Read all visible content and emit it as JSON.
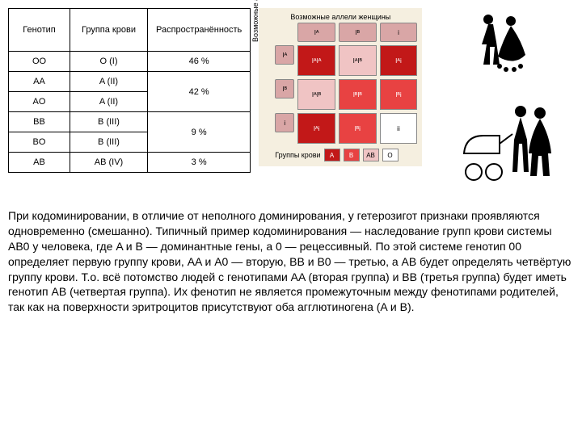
{
  "table": {
    "headers": {
      "genotype": "Генотип",
      "bloodgroup": "Группа крови",
      "percent": "Распространённость"
    },
    "rows": [
      {
        "g": "OO",
        "bg": "O (I)",
        "pc": "46 %",
        "span": 1
      },
      {
        "g": "AA",
        "bg": "A (II)",
        "pc": "42 %",
        "span": 2
      },
      {
        "g": "AO",
        "bg": "A (II)",
        "pc": "",
        "span": 0
      },
      {
        "g": "BB",
        "bg": "B (III)",
        "pc": "9 %",
        "span": 2
      },
      {
        "g": "BO",
        "bg": "B (III)",
        "pc": "",
        "span": 0
      },
      {
        "g": "AB",
        "bg": "AB (IV)",
        "pc": "3 %",
        "span": 1
      }
    ]
  },
  "punnett": {
    "top_title": "Возможные аллели женщины",
    "left_title": "Возможные аллели мужчины",
    "col_headers": [
      "Iᴬ",
      "Iᴮ",
      "i"
    ],
    "row_headers": [
      "Iᴬ",
      "Iᴮ",
      "i"
    ],
    "cells": [
      [
        {
          "t": "IᴬIᴬ",
          "c": "p-dark"
        },
        {
          "t": "IᴬIᴮ",
          "c": "p-light"
        },
        {
          "t": "Iᴬi",
          "c": "p-dark"
        }
      ],
      [
        {
          "t": "IᴬIᴮ",
          "c": "p-light"
        },
        {
          "t": "IᴮIᴮ",
          "c": "p-mid"
        },
        {
          "t": "Iᴮi",
          "c": "p-mid"
        }
      ],
      [
        {
          "t": "Iᴬi",
          "c": "p-dark"
        },
        {
          "t": "Iᴮi",
          "c": "p-mid"
        },
        {
          "t": "ii",
          "c": "p-white"
        }
      ]
    ],
    "legend_label": "Группы крови",
    "legend": [
      {
        "t": "A",
        "c": "lg-a"
      },
      {
        "t": "B",
        "c": "lg-b"
      },
      {
        "t": "AB",
        "c": "lg-ab"
      },
      {
        "t": "O",
        "c": "lg-o"
      }
    ]
  },
  "paragraph": "При кодоминировании, в отличие от неполного доминирования, у гетерозигот признаки проявляются одновременно (смешанно). Типичный пример кодоминирования — наследование групп крови системы AB0 у человека, где A и B — доминантные гены, а 0 — рецессивный. По этой системе генотип 00 определяет первую группу крови, AA и A0 — вторую, BB и B0 — третью, а AB будет определять четвёртую группу крови. Т.о. всё потомство людей с генотипами AA (вторая группа) и BB (третья группа) будет иметь генотип AB (четвертая группа). Их фенотип не является промежуточным между фенотипами родителей, так как на поверхности эритроцитов присутствуют оба агглютиногена (A и B)."
}
